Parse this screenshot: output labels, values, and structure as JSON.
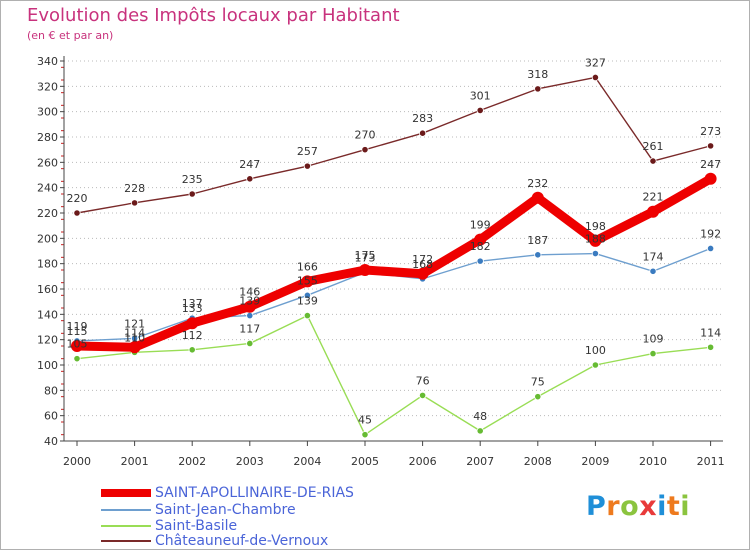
{
  "title": "Evolution des Impôts locaux par Habitant",
  "subtitle": "(en € et par an)",
  "logo_text": "Proxiti",
  "chart_data": {
    "type": "line",
    "title": "Evolution des Impôts locaux par Habitant",
    "subtitle": "(en € et par an)",
    "x": [
      "2000",
      "2001",
      "2002",
      "2003",
      "2004",
      "2005",
      "2006",
      "2007",
      "2008",
      "2009",
      "2010",
      "2011"
    ],
    "ylim": [
      40,
      340
    ],
    "yticks": [
      "40",
      "60",
      "80",
      "100",
      "120",
      "140",
      "160",
      "180",
      "200",
      "220",
      "240",
      "260",
      "280",
      "300",
      "320",
      "340"
    ],
    "grid": "horizontal dotted",
    "legend_position": "bottom-left",
    "series": [
      {
        "name": "SAINT-APOLLINAIRE-DE-RIAS",
        "color": "#ee0000",
        "values": [
          115,
          114,
          133,
          146,
          166,
          175,
          172,
          199,
          232,
          198,
          221,
          247
        ]
      },
      {
        "name": "Saint-Jean-Chambre",
        "color": "#6e9fcf",
        "values": [
          119,
          121,
          137,
          139,
          155,
          173,
          168,
          182,
          187,
          188,
          174,
          192
        ]
      },
      {
        "name": "Saint-Basile",
        "color": "#99dd55",
        "values": [
          105,
          110,
          112,
          117,
          139,
          45,
          76,
          48,
          75,
          100,
          109,
          114
        ]
      },
      {
        "name": "Châteauneuf-de-Vernoux",
        "color": "#7a2a2a",
        "values": [
          220,
          228,
          235,
          247,
          257,
          270,
          283,
          301,
          318,
          327,
          261,
          273
        ]
      }
    ]
  }
}
